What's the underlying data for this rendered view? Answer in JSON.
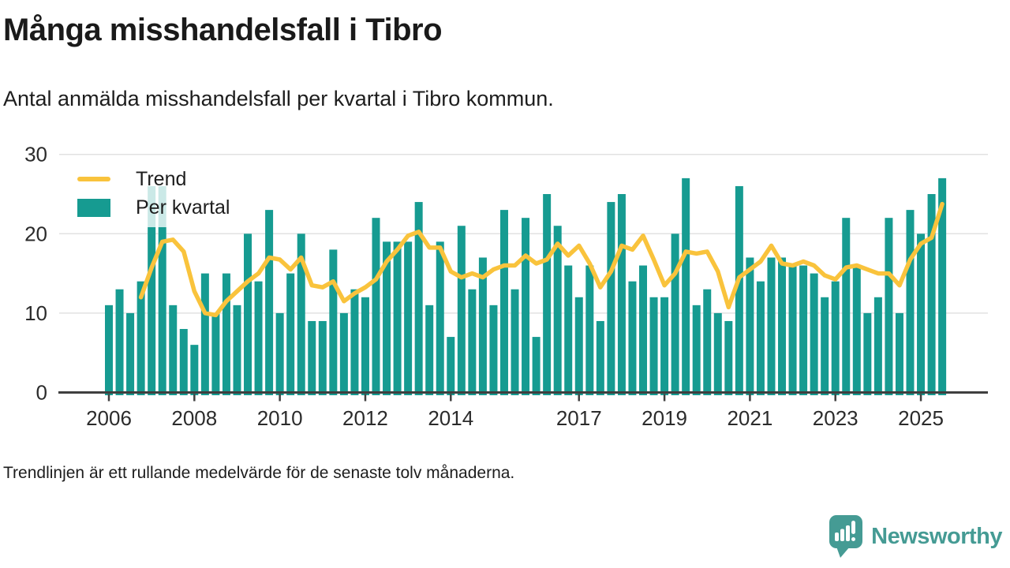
{
  "title": "Många misshandelsfall i Tibro",
  "subtitle": "Antal anmälda misshandelsfall per kvartal i Tibro kommun.",
  "footnote": "Trendlinjen är ett rullande medelvärde för de senaste tolv månaderna.",
  "brand": {
    "name": "Newsworthy",
    "icon": "bar-chart-speech-bubble"
  },
  "colors": {
    "bar": "#169B91",
    "trend": "#F9C33C",
    "grid": "#E2E2E2",
    "axis": "#3F3F3F",
    "text": "#1D1D1D",
    "brand": "#459B94"
  },
  "legend": [
    {
      "label": "Trend",
      "type": "line"
    },
    {
      "label": "Per kvartal",
      "type": "bar"
    }
  ],
  "chart_data": {
    "type": "bar",
    "title": "Antal anmälda misshandelsfall per kvartal i Tibro kommun",
    "xlabel": "",
    "ylabel": "",
    "ylim": [
      0,
      30
    ],
    "y_ticks": [
      0,
      10,
      20,
      30
    ],
    "grid": true,
    "legend_position": "top-left",
    "x_tick_labels": [
      "2006",
      "2008",
      "2010",
      "2012",
      "2014",
      "2017",
      "2019",
      "2021",
      "2023",
      "2025"
    ],
    "categories": [
      "2006-Q1",
      "2006-Q2",
      "2006-Q3",
      "2006-Q4",
      "2007-Q1",
      "2007-Q2",
      "2007-Q3",
      "2007-Q4",
      "2008-Q1",
      "2008-Q2",
      "2008-Q3",
      "2008-Q4",
      "2009-Q1",
      "2009-Q2",
      "2009-Q3",
      "2009-Q4",
      "2010-Q1",
      "2010-Q2",
      "2010-Q3",
      "2010-Q4",
      "2011-Q1",
      "2011-Q2",
      "2011-Q3",
      "2011-Q4",
      "2012-Q1",
      "2012-Q2",
      "2012-Q3",
      "2012-Q4",
      "2013-Q1",
      "2013-Q2",
      "2013-Q3",
      "2013-Q4",
      "2014-Q1",
      "2014-Q2",
      "2014-Q3",
      "2014-Q4",
      "2015-Q1",
      "2015-Q2",
      "2015-Q3",
      "2015-Q4",
      "2016-Q1",
      "2016-Q2",
      "2016-Q3",
      "2016-Q4",
      "2017-Q1",
      "2017-Q2",
      "2017-Q3",
      "2017-Q4",
      "2018-Q1",
      "2018-Q2",
      "2018-Q3",
      "2018-Q4",
      "2019-Q1",
      "2019-Q2",
      "2019-Q3",
      "2019-Q4",
      "2020-Q1",
      "2020-Q2",
      "2020-Q3",
      "2020-Q4",
      "2021-Q1",
      "2021-Q2",
      "2021-Q3",
      "2021-Q4",
      "2022-Q1",
      "2022-Q2",
      "2022-Q3",
      "2022-Q4",
      "2023-Q1",
      "2023-Q2",
      "2023-Q3",
      "2023-Q4",
      "2024-Q1",
      "2024-Q2",
      "2024-Q3",
      "2024-Q4",
      "2025-Q1",
      "2025-Q2",
      "2025-Q3"
    ],
    "series": [
      {
        "name": "Per kvartal",
        "type": "bar",
        "values": [
          11,
          13,
          10,
          14,
          26,
          26,
          11,
          8,
          6,
          15,
          10,
          15,
          11,
          20,
          14,
          23,
          10,
          15,
          20,
          9,
          9,
          18,
          10,
          13,
          12,
          22,
          19,
          19,
          19,
          24,
          11,
          19,
          7,
          21,
          13,
          17,
          11,
          23,
          13,
          22,
          7,
          25,
          21,
          16,
          12,
          16,
          9,
          24,
          25,
          14,
          16,
          12,
          12,
          20,
          27,
          11,
          13,
          10,
          9,
          26,
          17,
          14,
          17,
          17,
          16,
          16,
          15,
          12,
          14,
          22,
          16,
          10,
          12,
          22,
          10,
          23,
          20,
          25,
          27
        ]
      },
      {
        "name": "Trend",
        "type": "line",
        "values": [
          null,
          null,
          null,
          12,
          15.75,
          19,
          19.25,
          17.75,
          12.75,
          10,
          9.75,
          11.5,
          12.75,
          14,
          15,
          17,
          16.75,
          15.5,
          17,
          13.5,
          13.25,
          14,
          11.5,
          12.5,
          13.25,
          14.25,
          16.5,
          18,
          19.75,
          20.25,
          18.25,
          18.25,
          15.25,
          14.5,
          15,
          14.5,
          15.5,
          16,
          16,
          17.25,
          16.25,
          16.75,
          18.75,
          17.25,
          18.5,
          16.25,
          13.25,
          15.25,
          18.5,
          18,
          19.75,
          16.75,
          13.5,
          15,
          17.75,
          17.5,
          17.75,
          15.25,
          10.75,
          14.5,
          15.5,
          16.5,
          18.5,
          16.25,
          16,
          16.5,
          16,
          14.75,
          14.25,
          15.75,
          16,
          15.5,
          15,
          15,
          13.5,
          16.75,
          18.75,
          19.5,
          23.75
        ]
      }
    ]
  }
}
